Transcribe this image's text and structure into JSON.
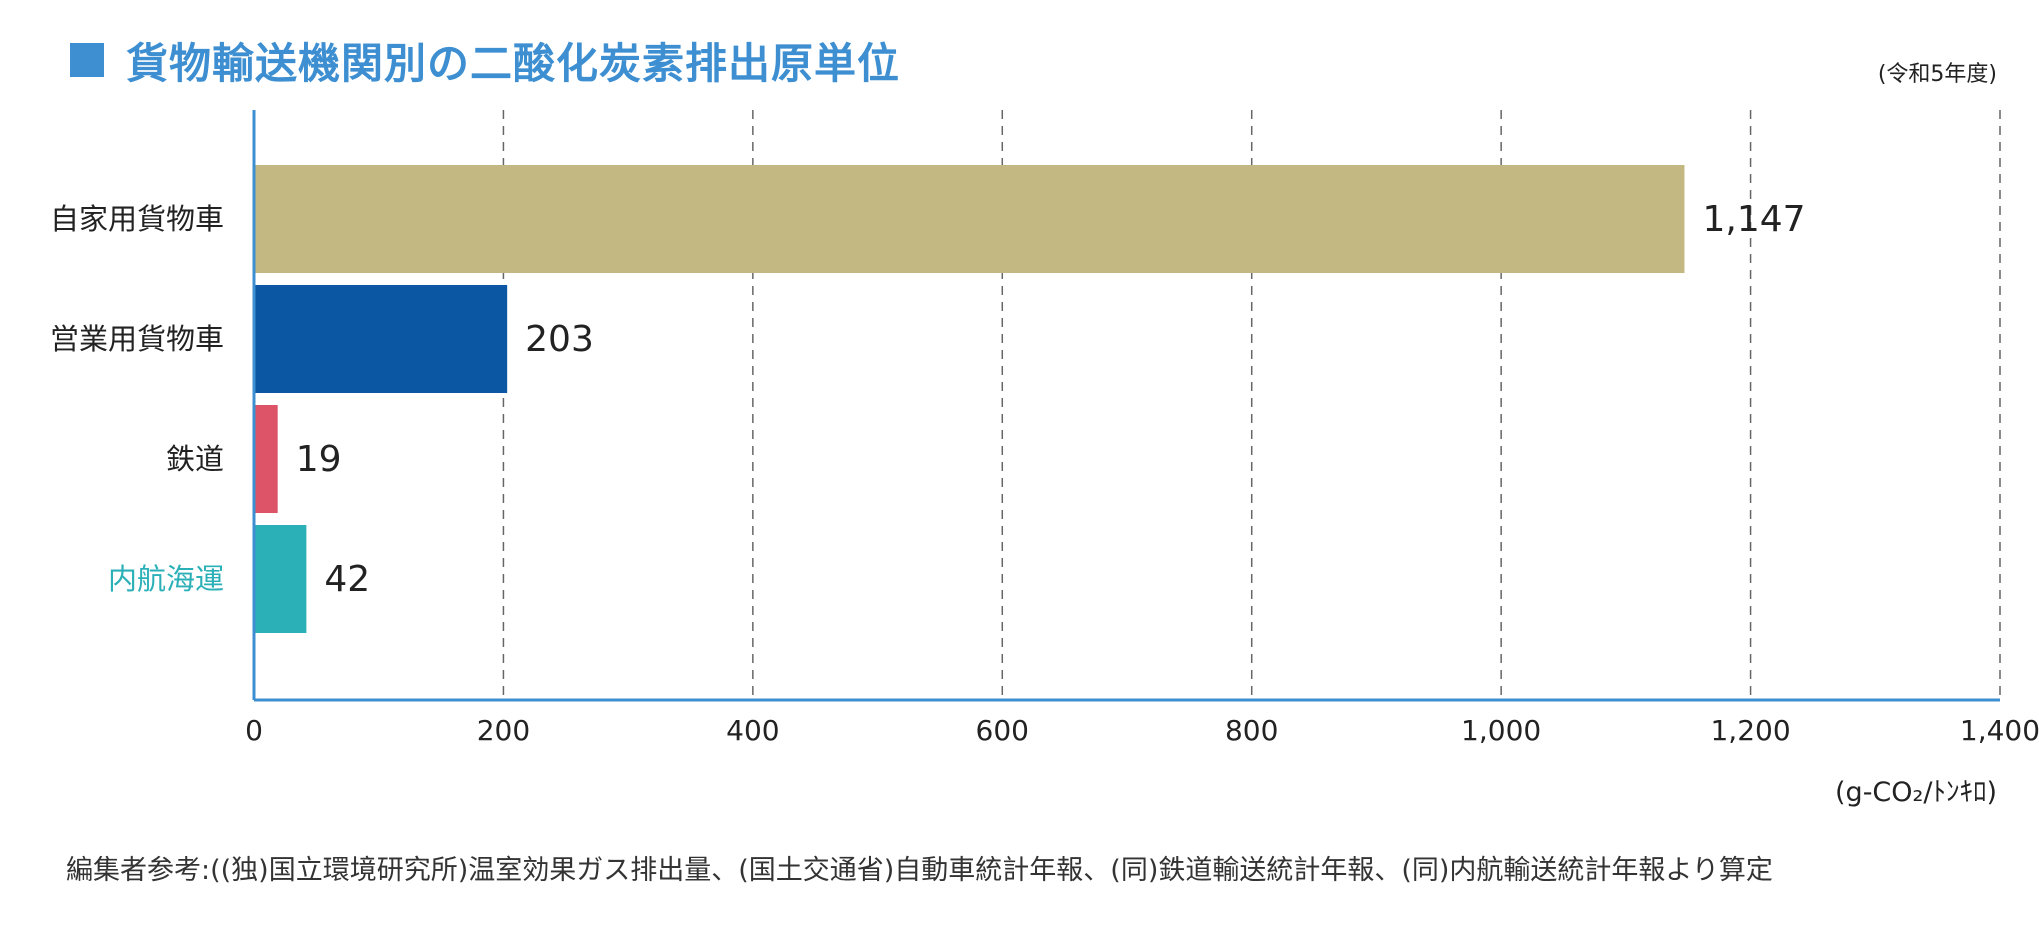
{
  "header": {
    "title": "貨物輸送機関別の二酸化炭素排出原単位",
    "subtitle": "(令和5年度)"
  },
  "colors": {
    "accent": "#3d8fd1",
    "highlight_label": "#2bb0b8",
    "axis": "#3d8fd1",
    "grid": "#666666"
  },
  "chart_data": {
    "type": "bar",
    "orientation": "horizontal",
    "title": "貨物輸送機関別の二酸化炭素排出原単位",
    "subtitle": "(令和5年度)",
    "categories": [
      "自家用貨物車",
      "営業用貨物車",
      "鉄道",
      "内航海運"
    ],
    "values": [
      1147,
      203,
      19,
      42
    ],
    "value_labels": [
      "1,147",
      "203",
      "19",
      "42"
    ],
    "bar_colors": [
      "#c4b882",
      "#0b57a4",
      "#dd5468",
      "#2bb0b8"
    ],
    "highlight_category_index": 3,
    "xlim": [
      0,
      1400
    ],
    "x_ticks": [
      0,
      200,
      400,
      600,
      800,
      1000,
      1200,
      1400
    ],
    "x_tick_labels": [
      "0",
      "200",
      "400",
      "600",
      "800",
      "1,000",
      "1,200",
      "1,400"
    ],
    "xlabel": "(g-CO₂/ﾄﾝｷﾛ)",
    "grid": "vertical-dashed",
    "legend": "none"
  },
  "footer": {
    "source": "編集者参考:((独)国立環境研究所)温室効果ガス排出量、(国土交通省)自動車統計年報、(同)鉄道輸送統計年報、(同)内航輸送統計年報より算定"
  }
}
